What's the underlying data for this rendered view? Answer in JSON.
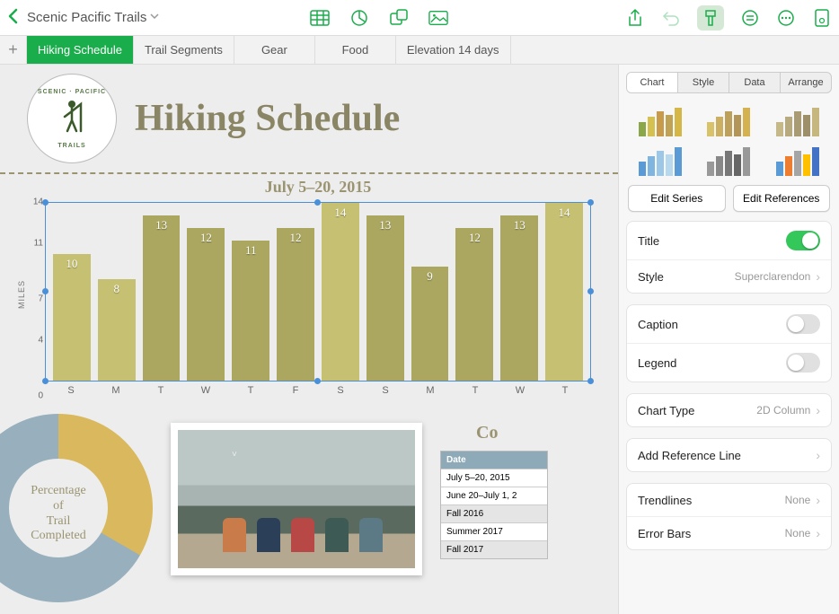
{
  "document": {
    "title": "Scenic Pacific Trails"
  },
  "tabs": [
    {
      "label": "Hiking Schedule",
      "active": true
    },
    {
      "label": "Trail Segments"
    },
    {
      "label": "Gear"
    },
    {
      "label": "Food"
    },
    {
      "label": "Elevation 14 days"
    }
  ],
  "page": {
    "logo_top": "SCENIC · PACIFIC",
    "logo_bottom": "TRAILS",
    "title": "Hiking Schedule"
  },
  "chart": {
    "type": "bar",
    "title": "July 5–20, 2015",
    "title_fontsize": 18,
    "ylabel": "MILES",
    "ylim": [
      0,
      14
    ],
    "yticks": [
      0,
      4,
      7,
      11,
      14
    ],
    "categories": [
      "S",
      "M",
      "T",
      "W",
      "T",
      "F",
      "S",
      "S",
      "M",
      "T",
      "W",
      "T"
    ],
    "values": [
      10,
      8,
      13,
      12,
      11,
      12,
      14,
      13,
      9,
      12,
      13,
      14
    ],
    "bar_colors": [
      "#c6c172",
      "#c6c172",
      "#aba760",
      "#aba760",
      "#aba760",
      "#aba760",
      "#c6c172",
      "#aba760",
      "#aba760",
      "#aba760",
      "#aba760",
      "#c6c172"
    ],
    "selection_color": "#4a90d9",
    "background_color": "#ededed"
  },
  "donut": {
    "title_lines": [
      "Percentage",
      "of",
      "Trail",
      "Completed"
    ],
    "slice_colors": [
      "#d9b85e",
      "#98b0bd"
    ],
    "slice_values": [
      33,
      67
    ]
  },
  "photo": {
    "people_colors": [
      "#c97b4a",
      "#2b3f58",
      "#b74846",
      "#3d5a54",
      "#5b7a86"
    ]
  },
  "mini_table": {
    "cut_title": "Co",
    "header": "Date",
    "rows": [
      "July 5–20, 2015",
      "June 20–July 1, 2",
      "Fall 2016",
      "Summer 2017",
      "Fall 2017"
    ],
    "alt_rows": [
      false,
      false,
      true,
      false,
      true
    ]
  },
  "inspector": {
    "tabs": [
      "Chart",
      "Style",
      "Data",
      "Arrange"
    ],
    "active_tab": 0,
    "style_palettes": [
      [
        "#8aa84a",
        "#d4c14f",
        "#c89b4b",
        "#bfa253",
        "#d4b747"
      ],
      [
        "#d8c36a",
        "#cab060",
        "#bda05a",
        "#b39558",
        "#d4b24f"
      ],
      [
        "#c5b98a",
        "#b8aa7f",
        "#a99b73",
        "#9c8f6a",
        "#c5b77e"
      ],
      [
        "#5b9bd5",
        "#7fb5de",
        "#9cc7e6",
        "#b8d8ed",
        "#5b9bd5"
      ],
      [
        "#999999",
        "#888888",
        "#777777",
        "#666666",
        "#999999"
      ],
      [
        "#5b9bd5",
        "#ed7d31",
        "#a5a5a5",
        "#ffc000",
        "#4472c4"
      ]
    ],
    "buttons": {
      "edit_series": "Edit Series",
      "edit_refs": "Edit References"
    },
    "options": {
      "title_label": "Title",
      "title_on": true,
      "style_label": "Style",
      "style_value": "Superclarendon",
      "caption_label": "Caption",
      "caption_on": false,
      "legend_label": "Legend",
      "legend_on": false,
      "chart_type_label": "Chart Type",
      "chart_type_value": "2D Column",
      "add_ref_label": "Add Reference Line",
      "trendlines_label": "Trendlines",
      "trendlines_value": "None",
      "errorbars_label": "Error Bars",
      "errorbars_value": "None"
    }
  }
}
